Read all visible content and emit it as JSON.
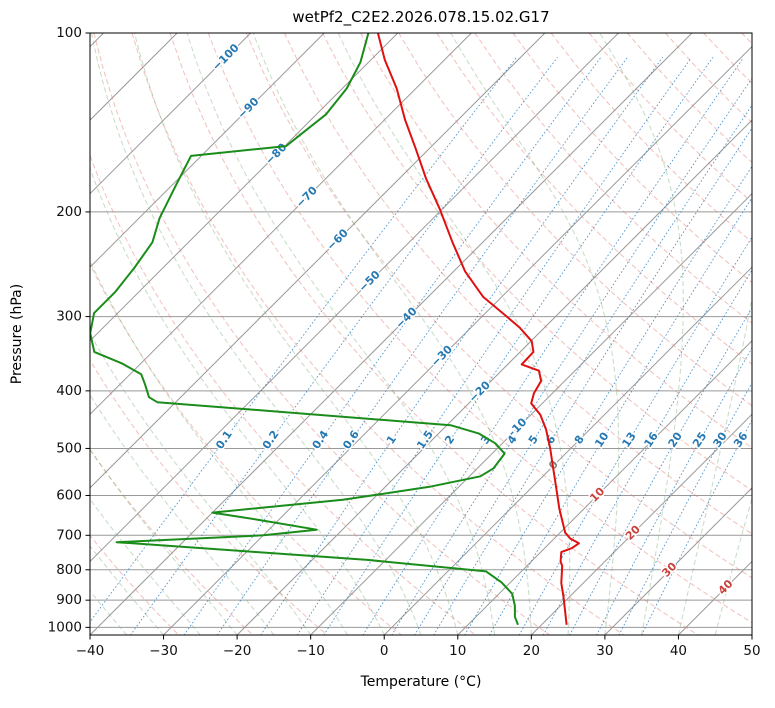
{
  "title": "wetPf2_C2E2.2026.078.15.02.G17",
  "axes": {
    "xlabel": "Temperature (°C)",
    "ylabel": "Pressure (hPa)",
    "x_ticks": [
      {
        "value": -40,
        "label": "−40"
      },
      {
        "value": -30,
        "label": "−30"
      },
      {
        "value": -20,
        "label": "−20"
      },
      {
        "value": -10,
        "label": "−10"
      },
      {
        "value": 0,
        "label": "0"
      },
      {
        "value": 10,
        "label": "10"
      },
      {
        "value": 20,
        "label": "20"
      },
      {
        "value": 30,
        "label": "30"
      },
      {
        "value": 40,
        "label": "40"
      },
      {
        "value": 50,
        "label": "50"
      }
    ],
    "p_ticks": [
      {
        "value": 100,
        "label": "100"
      },
      {
        "value": 200,
        "label": "200"
      },
      {
        "value": 300,
        "label": "300"
      },
      {
        "value": 400,
        "label": "400"
      },
      {
        "value": 500,
        "label": "500"
      },
      {
        "value": 600,
        "label": "600"
      },
      {
        "value": 700,
        "label": "700"
      },
      {
        "value": 800,
        "label": "800"
      },
      {
        "value": 900,
        "label": "900"
      },
      {
        "value": 1000,
        "label": "1000"
      }
    ]
  },
  "chart_data": {
    "type": "line",
    "chart_kind": "skew-t-log-p-sounding",
    "x_range_degC": [
      -40,
      50
    ],
    "pressure_range_hPa": [
      100,
      1030
    ],
    "grid": true,
    "temperature_series": {
      "name": "temperature",
      "points_p_hPa_t_degC": [
        [
          100,
          -82.7
        ],
        [
          111,
          -78.1
        ],
        [
          124,
          -72.6
        ],
        [
          140,
          -67.2
        ],
        [
          156,
          -62.0
        ],
        [
          176,
          -56.3
        ],
        [
          198,
          -50.3
        ],
        [
          225,
          -44.1
        ],
        [
          252,
          -38.4
        ],
        [
          278,
          -32.5
        ],
        [
          297,
          -27.4
        ],
        [
          313,
          -23.4
        ],
        [
          330,
          -19.9
        ],
        [
          344,
          -18.2
        ],
        [
          361,
          -18.1
        ],
        [
          370,
          -14.9
        ],
        [
          385,
          -13.2
        ],
        [
          404,
          -12.5
        ],
        [
          420,
          -11.5
        ],
        [
          439,
          -8.7
        ],
        [
          465,
          -5.9
        ],
        [
          500,
          -2.8
        ],
        [
          532,
          -0.3
        ],
        [
          563,
          2.0
        ],
        [
          596,
          4.3
        ],
        [
          631,
          6.6
        ],
        [
          668,
          9.1
        ],
        [
          693,
          10.7
        ],
        [
          709,
          12.2
        ],
        [
          722,
          14.0
        ],
        [
          736,
          13.7
        ],
        [
          747,
          12.8
        ],
        [
          775,
          14.0
        ],
        [
          788,
          14.8
        ],
        [
          842,
          17.0
        ],
        [
          891,
          19.3
        ],
        [
          945,
          21.6
        ],
        [
          990,
          23.4
        ]
      ]
    },
    "dewpoint_series": {
      "name": "dewpoint",
      "points_p_hPa_t_degC": [
        [
          100,
          -84.0
        ],
        [
          112,
          -81.1
        ],
        [
          124,
          -79.4
        ],
        [
          137,
          -78.7
        ],
        [
          148,
          -79.4
        ],
        [
          155,
          -79.8
        ],
        [
          161,
          -91.4
        ],
        [
          179,
          -89.6
        ],
        [
          205,
          -87.2
        ],
        [
          225,
          -84.9
        ],
        [
          248,
          -83.9
        ],
        [
          273,
          -83.2
        ],
        [
          296,
          -83.2
        ],
        [
          320,
          -81.0
        ],
        [
          344,
          -77.9
        ],
        [
          360,
          -72.5
        ],
        [
          375,
          -68.5
        ],
        [
          390,
          -66.6
        ],
        [
          410,
          -64.3
        ],
        [
          418,
          -62.5
        ],
        [
          457,
          -19.5
        ],
        [
          472,
          -14.5
        ],
        [
          490,
          -11.0
        ],
        [
          510,
          -8.3
        ],
        [
          540,
          -7.8
        ],
        [
          557,
          -8.5
        ],
        [
          580,
          -14.0
        ],
        [
          610,
          -24.0
        ],
        [
          641,
          -40.0
        ],
        [
          660,
          -32.5
        ],
        [
          685,
          -23.5
        ],
        [
          700,
          -30.0
        ],
        [
          719,
          -49.0
        ],
        [
          745,
          -30.0
        ],
        [
          770,
          -12.5
        ],
        [
          805,
          5.2
        ],
        [
          840,
          8.8
        ],
        [
          878,
          11.8
        ],
        [
          920,
          13.8
        ],
        [
          960,
          15.3
        ],
        [
          990,
          16.8
        ]
      ]
    },
    "isotherms": {
      "start": -120,
      "end": 50,
      "step": 10
    },
    "pressure_gridlines_hPa": [
      100,
      200,
      300,
      400,
      500,
      600,
      700,
      800,
      900,
      1000
    ],
    "dry_adiabats_theta_degC": {
      "start": -30,
      "end": 200,
      "step": 10
    },
    "moist_adiabats_t0_degC": {
      "start": -40,
      "end": 45,
      "step": 5
    },
    "mixing_ratio_lines": {
      "values_g_kg": [
        0.1,
        0.2,
        0.4,
        0.6,
        1,
        1.5,
        2,
        3,
        4,
        5,
        6,
        8,
        10,
        13,
        16,
        20,
        25,
        30,
        36
      ],
      "label_pressure_hPa": 484
    },
    "isotherm_labels": [
      {
        "t": -100,
        "p": 110
      },
      {
        "t": -90,
        "p": 134
      },
      {
        "t": -80,
        "p": 160
      },
      {
        "t": -70,
        "p": 189
      },
      {
        "t": -60,
        "p": 223
      },
      {
        "t": -50,
        "p": 262
      },
      {
        "t": -40,
        "p": 302
      },
      {
        "t": -30,
        "p": 350
      },
      {
        "t": -20,
        "p": 402
      },
      {
        "t": -10,
        "p": 464
      },
      {
        "t": 0,
        "p": 534
      },
      {
        "t": 10,
        "p": 599
      },
      {
        "t": 20,
        "p": 694
      },
      {
        "t": 30,
        "p": 801
      },
      {
        "t": 40,
        "p": 857
      }
    ],
    "colors": {
      "temperature": "#e01010",
      "dewpoint": "#1a8c1a",
      "isotherm_grid": "#999999",
      "pressure_grid": "#999999",
      "dry_adiabat": "#e0756b",
      "moist_adiabat": "#79ad79",
      "mixing_ratio": "#2e7ebc",
      "label_negative": "#2678b2",
      "label_zero": "#808080",
      "label_positive": "#c9413a",
      "spine": "#000000"
    }
  }
}
